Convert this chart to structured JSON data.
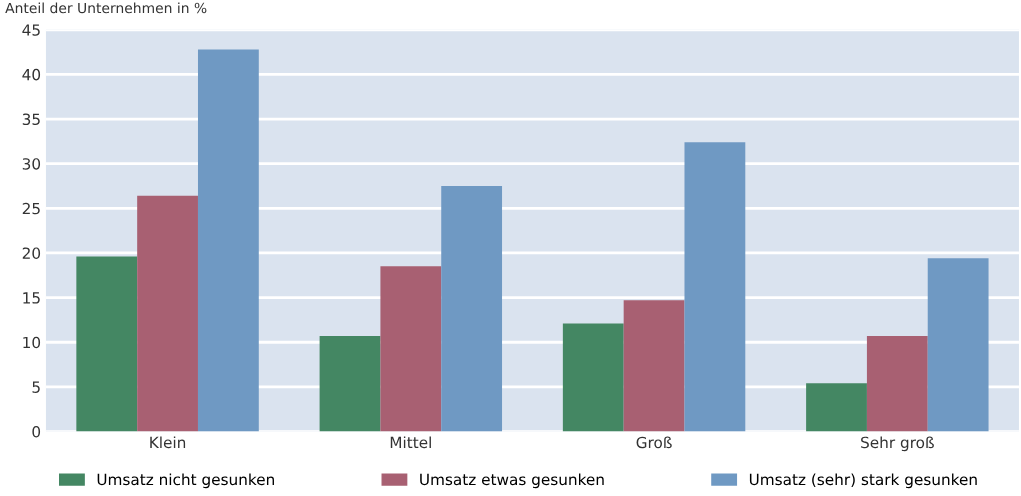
{
  "chart_data": {
    "type": "bar",
    "ylabel": "Anteil der Unternehmen in %",
    "categories": [
      "Klein",
      "Mittel",
      "Groß",
      "Sehr groß"
    ],
    "series": [
      {
        "name": "Umsatz nicht gesunken",
        "color": "#448763",
        "values": [
          19.6,
          10.7,
          12.1,
          5.4
        ]
      },
      {
        "name": "Umsatz etwas gesunken",
        "color": "#a86072",
        "values": [
          26.4,
          18.5,
          14.7,
          10.7
        ]
      },
      {
        "name": "Umsatz (sehr) stark gesunken",
        "color": "#6f99c3",
        "values": [
          42.8,
          27.5,
          32.4,
          19.4
        ]
      }
    ],
    "ylim": [
      0,
      45
    ],
    "yticks": [
      0,
      5,
      10,
      15,
      20,
      25,
      30,
      35,
      40,
      45
    ],
    "grid": "y",
    "legend": "bottom"
  }
}
